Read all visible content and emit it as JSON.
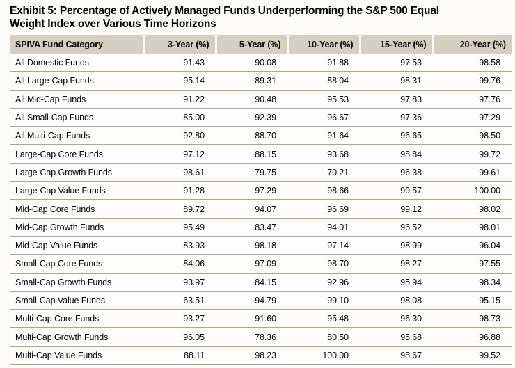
{
  "title": "Exhibit 5: Percentage of Actively Managed Funds Underperforming the S&P 500 Equal Weight Index over Various Time Horizons",
  "title_lines": [
    "Exhibit 5: Percentage of Actively Managed Funds Underperforming the S&P 500 Equal",
    "Weight Index over Various Time Horizons"
  ],
  "chart_data": {
    "type": "table",
    "title": "Exhibit 5: Percentage of Actively Managed Funds Underperforming the S&P 500 Equal Weight Index over Various Time Horizons",
    "columns": [
      "SPIVA Fund Category",
      "3-Year (%)",
      "5-Year (%)",
      "10-Year (%)",
      "15-Year (%)",
      "20-Year (%)"
    ],
    "rows": [
      {
        "category": "All Domestic Funds",
        "values": [
          "91.43",
          "90.08",
          "91.88",
          "97.53",
          "98.58"
        ]
      },
      {
        "category": "All Large-Cap Funds",
        "values": [
          "95.14",
          "89.31",
          "88.04",
          "98.31",
          "99.76"
        ]
      },
      {
        "category": "All Mid-Cap Funds",
        "values": [
          "91.22",
          "90.48",
          "95.53",
          "97.83",
          "97.76"
        ]
      },
      {
        "category": "All Small-Cap Funds",
        "values": [
          "85.00",
          "92.39",
          "96.67",
          "97.36",
          "97.29"
        ]
      },
      {
        "category": "All Multi-Cap Funds",
        "values": [
          "92.80",
          "88.70",
          "91.64",
          "96.65",
          "98.50"
        ]
      },
      {
        "category": "Large-Cap Core Funds",
        "values": [
          "97.12",
          "88.15",
          "93.68",
          "98.84",
          "99.72"
        ]
      },
      {
        "category": "Large-Cap Growth Funds",
        "values": [
          "98.61",
          "79.75",
          "70.21",
          "96.38",
          "99.61"
        ]
      },
      {
        "category": "Large-Cap Value Funds",
        "values": [
          "91.28",
          "97.29",
          "98.66",
          "99.57",
          "100.00"
        ]
      },
      {
        "category": "Mid-Cap Core Funds",
        "values": [
          "89.72",
          "94.07",
          "96.69",
          "99.12",
          "98.02"
        ]
      },
      {
        "category": "Mid-Cap Growth Funds",
        "values": [
          "95.49",
          "83.47",
          "94.01",
          "96.52",
          "98.01"
        ]
      },
      {
        "category": "Mid-Cap Value Funds",
        "values": [
          "83.93",
          "98.18",
          "97.14",
          "98.99",
          "96.04"
        ]
      },
      {
        "category": "Small-Cap Core Funds",
        "values": [
          "84.06",
          "97.09",
          "98.70",
          "98.27",
          "97.55"
        ]
      },
      {
        "category": "Small-Cap Growth Funds",
        "values": [
          "93.97",
          "84.15",
          "92.96",
          "95.94",
          "98.34"
        ]
      },
      {
        "category": "Small-Cap Value Funds",
        "values": [
          "63.51",
          "94.79",
          "99.10",
          "98.08",
          "95.15"
        ]
      },
      {
        "category": "Multi-Cap Core Funds",
        "values": [
          "93.27",
          "91.60",
          "95.48",
          "96.30",
          "98.73"
        ]
      },
      {
        "category": "Multi-Cap Growth Funds",
        "values": [
          "96.05",
          "78.36",
          "80.50",
          "95.68",
          "96.88"
        ]
      },
      {
        "category": "Multi-Cap Value Funds",
        "values": [
          "88.11",
          "98.23",
          "100.00",
          "98.67",
          "99.52"
        ]
      }
    ]
  },
  "colors": {
    "page_bg": "#fcfbf8",
    "header_bg": "#d5cfc2",
    "row_separator": "#b2a689",
    "row_bg": "#fdfdfb",
    "text": "#000000"
  }
}
